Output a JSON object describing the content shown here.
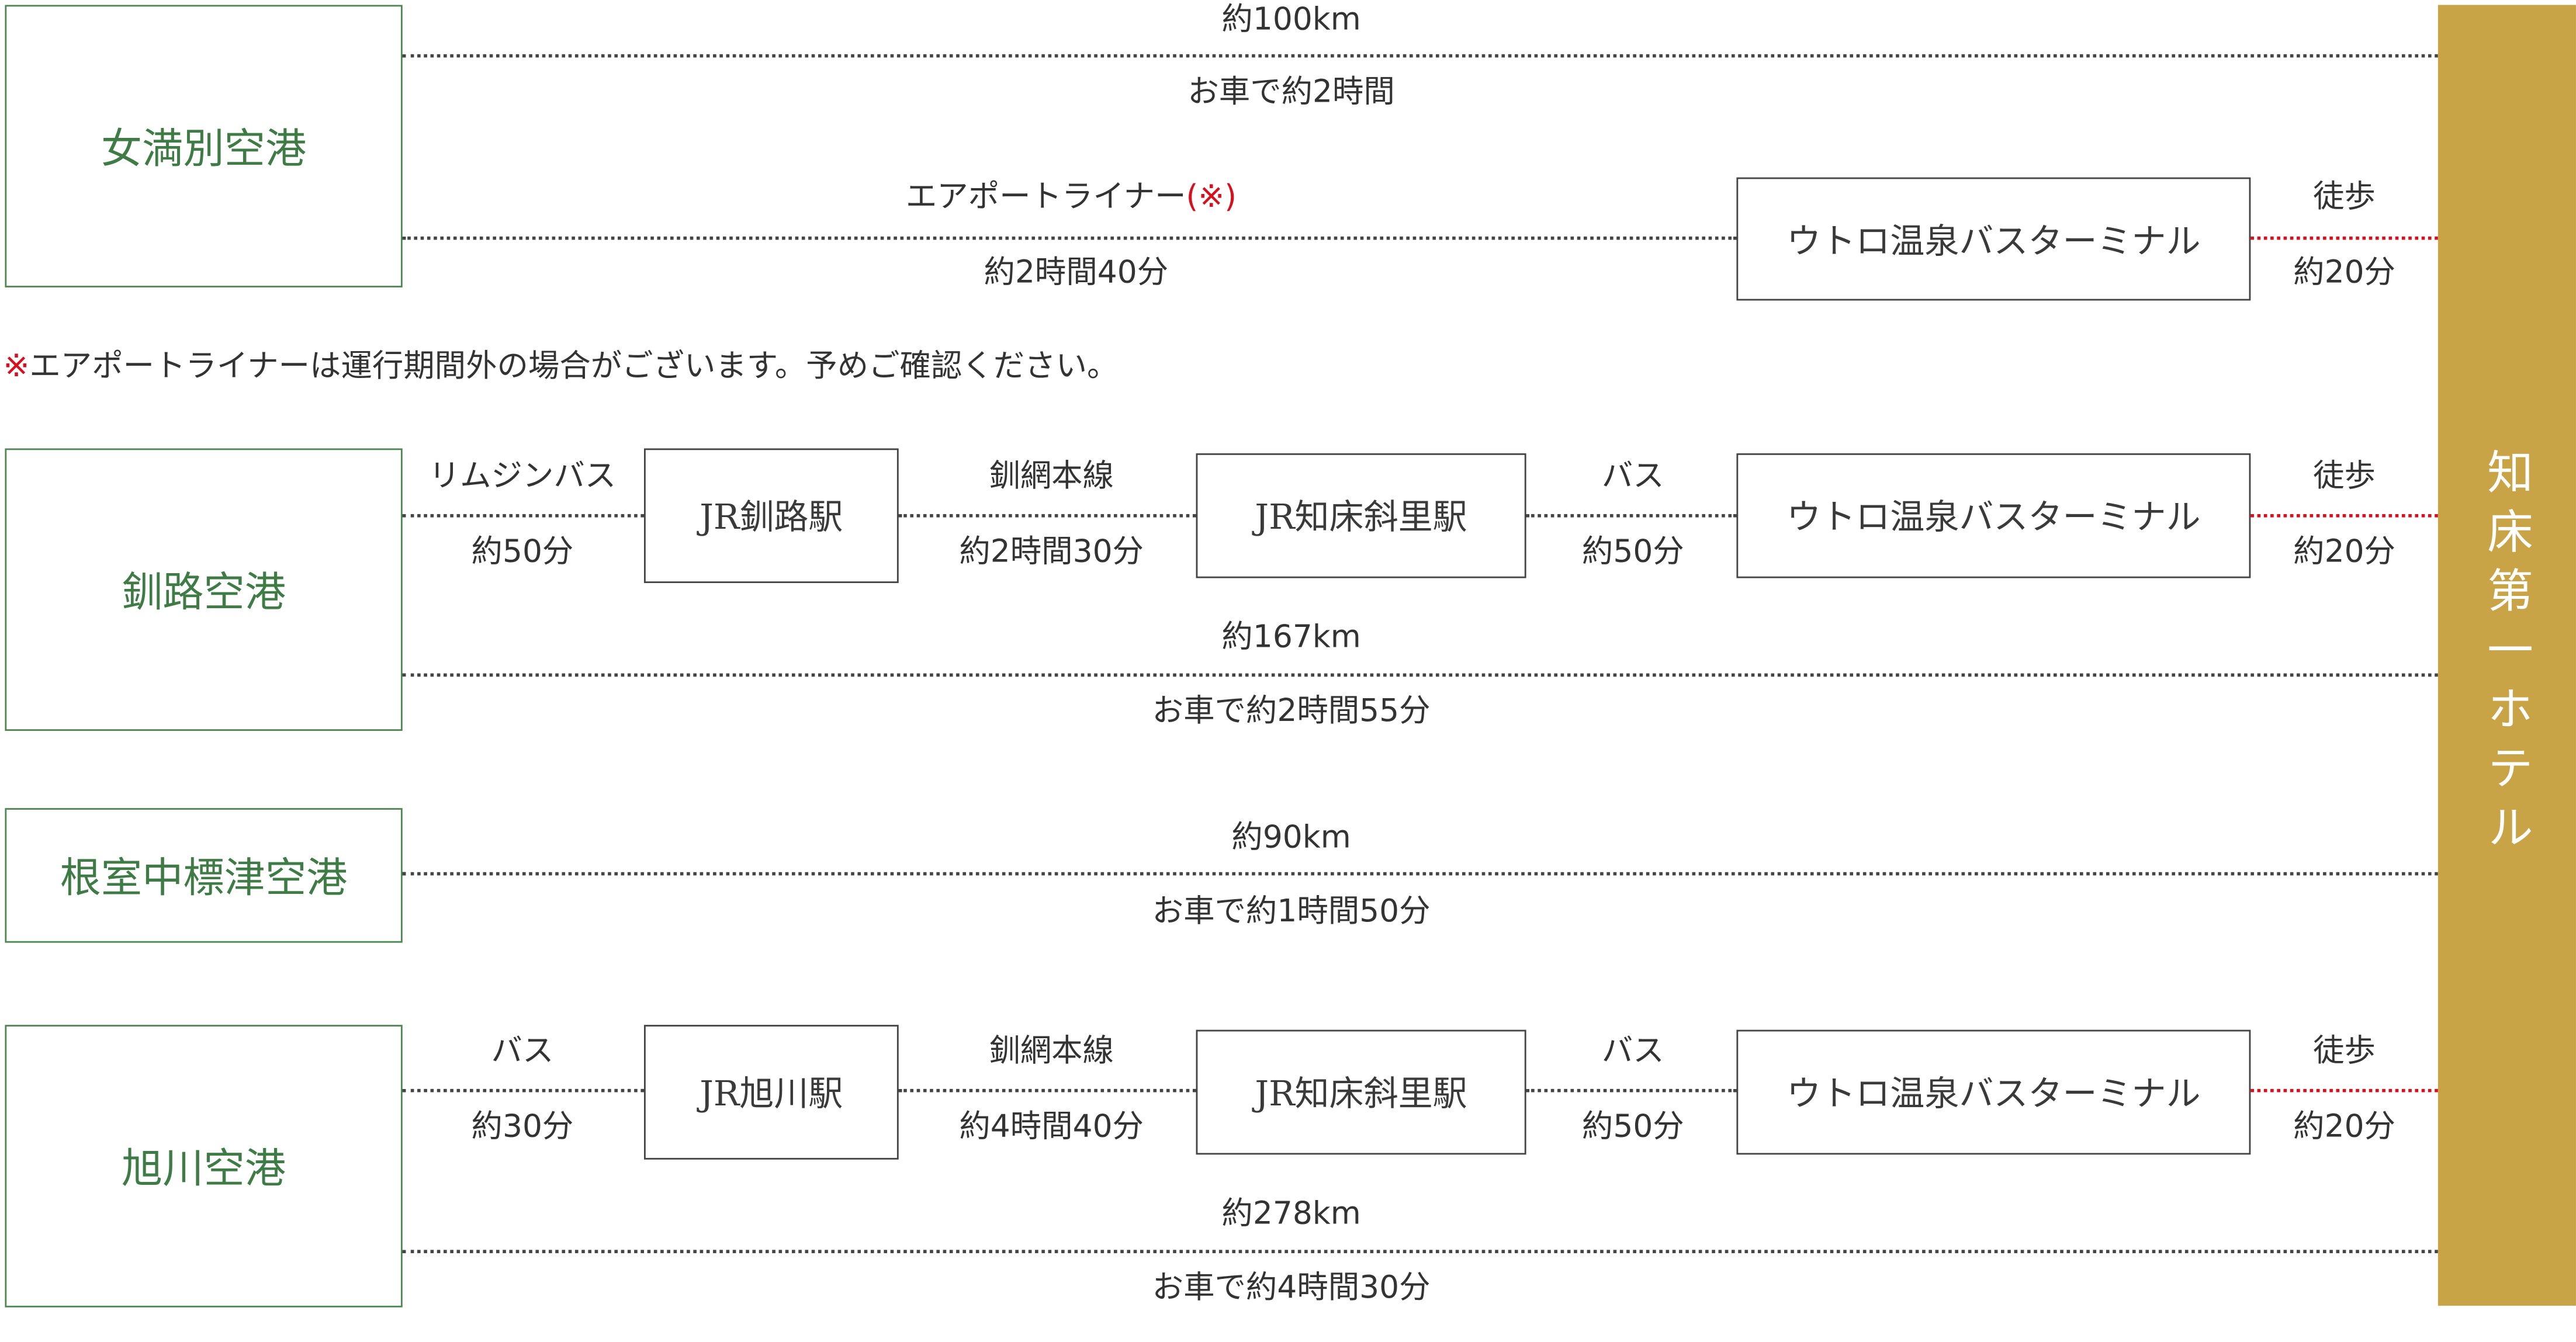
{
  "colors": {
    "origin_green": "#3f7c45",
    "hotel_gold": "#c9a447",
    "walk_red": "#d7101e",
    "text": "#333333"
  },
  "hotel": "知床第一ホテル",
  "memanbetsu": {
    "name": "女満別空港",
    "car_distance": "約100km",
    "car_time": "お車で約2時間",
    "liner_label": "エアポートライナー",
    "liner_mark": "(※)",
    "liner_time": "約2時間40分",
    "terminal": "ウトロ温泉バスターミナル",
    "walk": "徒歩",
    "walk_time": "約20分"
  },
  "note": {
    "mark": "※",
    "text": "エアポートライナーは運行期間外の場合がございます。予めご確認ください。"
  },
  "kushiro": {
    "name": "釧路空港",
    "seg1_label": "リムジンバス",
    "seg1_time": "約50分",
    "station1": "JR釧路駅",
    "seg2_label": "釧網本線",
    "seg2_time": "約2時間30分",
    "station2": "JR知床斜里駅",
    "seg3_label": "バス",
    "seg3_time": "約50分",
    "terminal": "ウトロ温泉バスターミナル",
    "walk": "徒歩",
    "walk_time": "約20分",
    "car_distance": "約167km",
    "car_time": "お車で約2時間55分"
  },
  "nemuro": {
    "name": "根室中標津空港",
    "car_distance": "約90km",
    "car_time": "お車で約1時間50分"
  },
  "asahikawa": {
    "name": "旭川空港",
    "seg1_label": "バス",
    "seg1_time": "約30分",
    "station1": "JR旭川駅",
    "seg2_label": "釧網本線",
    "seg2_time": "約4時間40分",
    "station2": "JR知床斜里駅",
    "seg3_label": "バス",
    "seg3_time": "約50分",
    "terminal": "ウトロ温泉バスターミナル",
    "walk": "徒歩",
    "walk_time": "約20分",
    "car_distance": "約278km",
    "car_time": "お車で約4時間30分"
  }
}
